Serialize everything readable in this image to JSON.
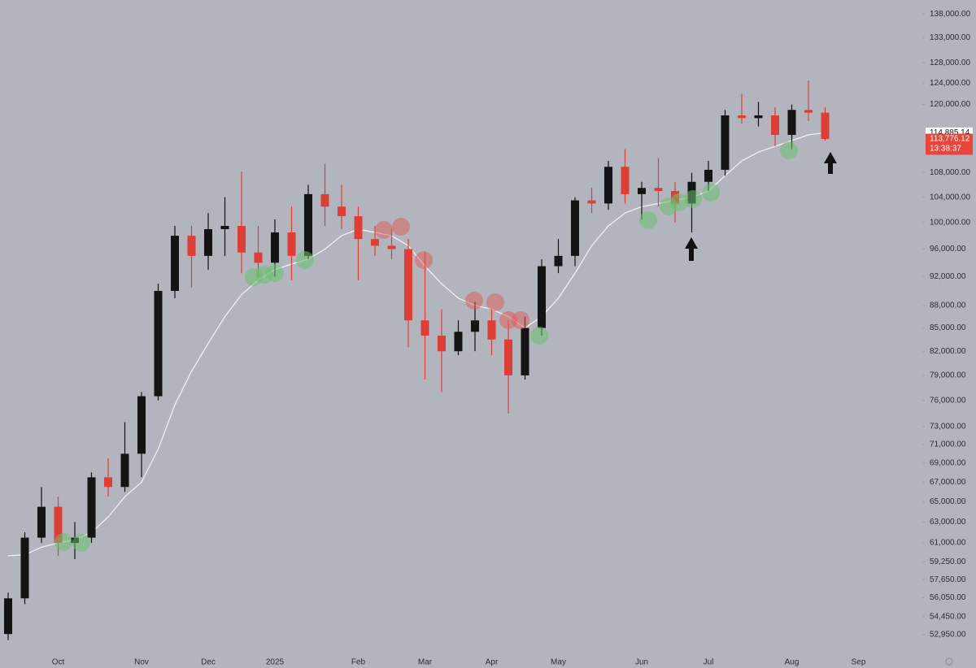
{
  "chart_data": {
    "type": "candlestick",
    "log_scale": true,
    "up_color": "#141414",
    "down_color": "#dd3f36",
    "line_color": "#f4f4f4",
    "categories": [
      null,
      null,
      null,
      "Oct",
      null,
      null,
      null,
      null,
      "Nov",
      null,
      null,
      null,
      "Dec",
      null,
      null,
      null,
      "2025",
      null,
      null,
      null,
      null,
      "Feb",
      null,
      null,
      null,
      "Mar",
      null,
      null,
      null,
      "Apr",
      null,
      null,
      null,
      "May",
      null,
      null,
      null,
      null,
      "Jun",
      null,
      null,
      null,
      "Jul",
      null,
      null,
      null,
      null,
      "Aug",
      null,
      null,
      null,
      "Sep"
    ],
    "open": [
      53000,
      56000,
      61500,
      64500,
      61000,
      61500,
      67500,
      66500,
      70000,
      76500,
      90000,
      98000,
      95000,
      99000,
      99500,
      95500,
      94000,
      98500,
      95000,
      104500,
      102500,
      101000,
      97500,
      96500,
      96000,
      86000,
      84000,
      82000,
      84500,
      86000,
      83500,
      79000,
      85000,
      93500,
      95000,
      103500,
      103000,
      109000,
      104500,
      105500,
      105000,
      103000,
      106500,
      108500,
      118000,
      117500,
      118000,
      114500,
      119000,
      118500,
      null,
      null
    ],
    "high": [
      56500,
      62000,
      66500,
      65500,
      63000,
      68000,
      69500,
      73500,
      77000,
      91000,
      99500,
      99500,
      101500,
      104000,
      108200,
      99500,
      100500,
      102500,
      106000,
      109500,
      106000,
      102500,
      99500,
      99000,
      97500,
      95500,
      87500,
      86000,
      88500,
      87500,
      86000,
      86500,
      94500,
      97500,
      104000,
      105500,
      110000,
      112000,
      106500,
      110500,
      106500,
      108000,
      110000,
      119000,
      122000,
      120500,
      119500,
      120000,
      124500,
      119500,
      null,
      null
    ],
    "low": [
      52500,
      55500,
      61000,
      59800,
      59500,
      61000,
      65500,
      66000,
      67500,
      76000,
      89000,
      90500,
      93000,
      95000,
      92500,
      92000,
      92000,
      91500,
      94500,
      99500,
      99000,
      91500,
      95000,
      94500,
      82500,
      78500,
      77000,
      81500,
      82000,
      81500,
      74500,
      78500,
      84000,
      92500,
      93500,
      101500,
      102000,
      103000,
      100500,
      102500,
      100000,
      98500,
      105000,
      107500,
      116500,
      116000,
      112500,
      112000,
      117000,
      113500,
      null,
      null
    ],
    "close": [
      56000,
      61500,
      64500,
      61000,
      61500,
      67500,
      66500,
      70000,
      76500,
      90000,
      98000,
      95000,
      99000,
      99500,
      95500,
      94000,
      98500,
      95000,
      104500,
      102500,
      101000,
      97500,
      96500,
      96000,
      86000,
      84000,
      82000,
      84500,
      86000,
      83500,
      79000,
      85000,
      93500,
      95000,
      103500,
      103000,
      109000,
      104500,
      105500,
      105000,
      103000,
      106500,
      108500,
      118000,
      117500,
      118000,
      114500,
      119000,
      118500,
      113776.12,
      null,
      null
    ],
    "line_values": [
      59800,
      59900,
      60600,
      61000,
      61300,
      62000,
      63500,
      65500,
      67000,
      70500,
      75500,
      79500,
      83000,
      86500,
      89500,
      91500,
      93000,
      93800,
      94500,
      96000,
      98000,
      99000,
      98500,
      98000,
      96500,
      93500,
      91000,
      89000,
      88000,
      87500,
      86500,
      85000,
      86500,
      89000,
      92500,
      96500,
      99500,
      101500,
      102500,
      103000,
      103500,
      104000,
      105000,
      107500,
      110000,
      111500,
      112500,
      113500,
      114500,
      114885.14,
      null,
      null
    ],
    "ylim": [
      51700,
      141000
    ],
    "yticks": [
      {
        "value": 138000,
        "label": "138,000.00"
      },
      {
        "value": 133000,
        "label": "133,000.00"
      },
      {
        "value": 128000,
        "label": "128,000.00"
      },
      {
        "value": 124000,
        "label": "124,000.00"
      },
      {
        "value": 120000,
        "label": "120,000.00"
      },
      {
        "value": 108000,
        "label": "108,000.00"
      },
      {
        "value": 104000,
        "label": "104,000.00"
      },
      {
        "value": 100000,
        "label": "100,000.00"
      },
      {
        "value": 96000,
        "label": "96,000.00"
      },
      {
        "value": 92000,
        "label": "92,000.00"
      },
      {
        "value": 88000,
        "label": "88,000.00"
      },
      {
        "value": 85000,
        "label": "85,000.00"
      },
      {
        "value": 82000,
        "label": "82,000.00"
      },
      {
        "value": 79000,
        "label": "79,000.00"
      },
      {
        "value": 76000,
        "label": "76,000.00"
      },
      {
        "value": 73000,
        "label": "73,000.00"
      },
      {
        "value": 71000,
        "label": "71,000.00"
      },
      {
        "value": 69000,
        "label": "69,000.00"
      },
      {
        "value": 67000,
        "label": "67,000.00"
      },
      {
        "value": 65000,
        "label": "65,000.00"
      },
      {
        "value": 63000,
        "label": "63,000.00"
      },
      {
        "value": 61000,
        "label": "61,000.00"
      },
      {
        "value": 59250,
        "label": "59,250.00"
      },
      {
        "value": 57650,
        "label": "57,650.00"
      },
      {
        "value": 56050,
        "label": "56,050.00"
      },
      {
        "value": 54450,
        "label": "54,450.00"
      },
      {
        "value": 52950,
        "label": "52,950.00"
      }
    ],
    "price_tags": [
      {
        "value": 114885.14,
        "label": "114,885.14",
        "color": "#ffffff"
      },
      {
        "value": 113776.12,
        "label": "113,776.12",
        "color": "#e8463b"
      }
    ],
    "countdown": "13:38:37"
  }
}
